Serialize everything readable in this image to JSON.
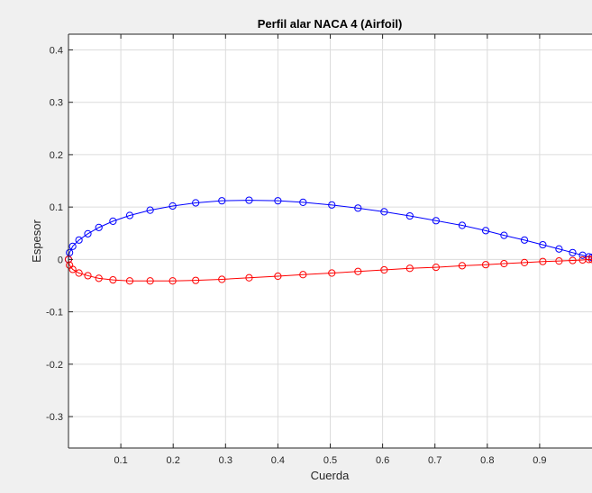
{
  "chart_data": {
    "type": "line",
    "title": "Perfil alar NACA 4 (Airfoil)",
    "xlabel": "Cuerda",
    "ylabel": "Espesor",
    "xlim": [
      0,
      1
    ],
    "ylim": [
      -0.36,
      0.43
    ],
    "grid": true,
    "xticks": [
      0.1,
      0.2,
      0.3,
      0.4,
      0.5,
      0.6,
      0.7,
      0.8,
      0.9
    ],
    "yticks": [
      -0.3,
      -0.2,
      -0.1,
      0,
      0.1,
      0.2,
      0.3,
      0.4
    ],
    "series": [
      {
        "color": "#0000ff",
        "marker": "circle",
        "x": [
          0.0,
          0.002,
          0.008,
          0.02,
          0.037,
          0.058,
          0.085,
          0.117,
          0.156,
          0.199,
          0.243,
          0.293,
          0.345,
          0.4,
          0.448,
          0.503,
          0.553,
          0.603,
          0.652,
          0.702,
          0.752,
          0.797,
          0.832,
          0.871,
          0.906,
          0.937,
          0.963,
          0.982,
          0.994,
          1.0
        ],
        "y": [
          0.0,
          0.013,
          0.025,
          0.037,
          0.049,
          0.061,
          0.073,
          0.084,
          0.094,
          0.102,
          0.108,
          0.112,
          0.113,
          0.112,
          0.109,
          0.104,
          0.098,
          0.091,
          0.083,
          0.074,
          0.065,
          0.055,
          0.046,
          0.037,
          0.028,
          0.02,
          0.013,
          0.008,
          0.005,
          0.004
        ]
      },
      {
        "color": "#ff0000",
        "marker": "circle",
        "x": [
          0.0,
          0.002,
          0.008,
          0.02,
          0.037,
          0.058,
          0.085,
          0.117,
          0.156,
          0.199,
          0.243,
          0.293,
          0.345,
          0.4,
          0.448,
          0.503,
          0.553,
          0.603,
          0.652,
          0.702,
          0.752,
          0.797,
          0.832,
          0.871,
          0.906,
          0.937,
          0.963,
          0.982,
          0.994,
          1.0
        ],
        "y": [
          0.0,
          -0.011,
          -0.019,
          -0.026,
          -0.031,
          -0.036,
          -0.039,
          -0.041,
          -0.041,
          -0.041,
          -0.04,
          -0.038,
          -0.035,
          -0.032,
          -0.029,
          -0.026,
          -0.023,
          -0.02,
          -0.017,
          -0.015,
          -0.012,
          -0.01,
          -0.008,
          -0.006,
          -0.004,
          -0.003,
          -0.002,
          -0.001,
          0.0,
          0.0
        ]
      }
    ]
  }
}
